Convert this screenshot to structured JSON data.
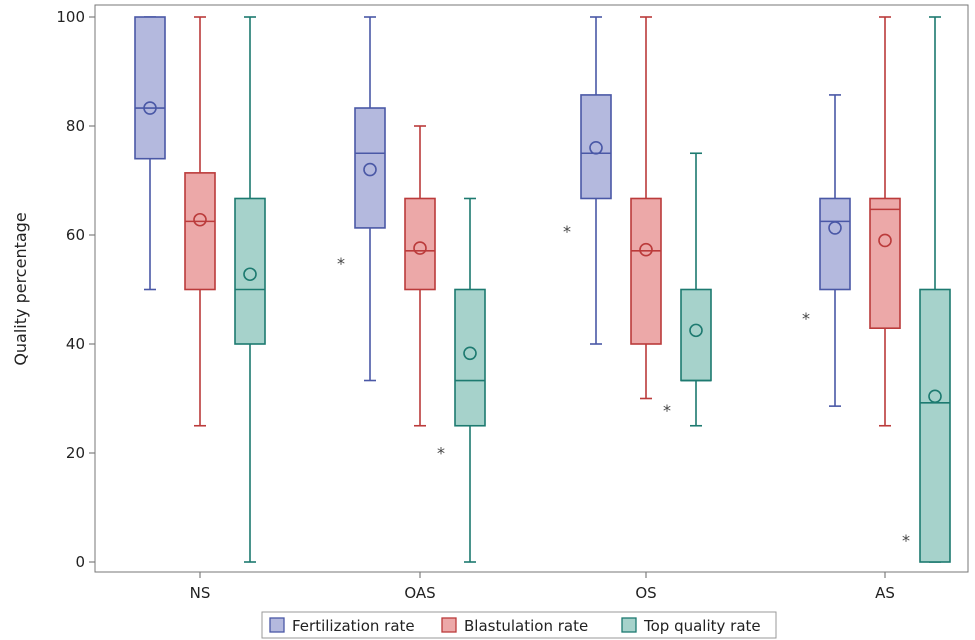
{
  "chart_data": {
    "type": "boxplot",
    "ylabel": "Quality percentage",
    "xlabel": "",
    "ylim": [
      0,
      100
    ],
    "yticks": [
      0,
      20,
      40,
      60,
      80,
      100
    ],
    "categories": [
      "NS",
      "OAS",
      "OS",
      "AS"
    ],
    "legend_position": "bottom",
    "series": [
      {
        "name": "Fertilization rate",
        "fill": "#b4b9de",
        "stroke": "#4a58a6",
        "boxes": [
          {
            "min": 50,
            "q1": 74,
            "median": 83.3,
            "q3": 100,
            "max": 100,
            "mean": 83.3,
            "outliers": []
          },
          {
            "min": 33.3,
            "q1": 61.3,
            "median": 75,
            "q3": 83.3,
            "max": 100,
            "mean": 72,
            "outliers": [
              55.6
            ]
          },
          {
            "min": 40,
            "q1": 66.7,
            "median": 75,
            "q3": 85.7,
            "max": 100,
            "mean": 76,
            "outliers": [
              61.5
            ]
          },
          {
            "min": 28.6,
            "q1": 50,
            "median": 62.5,
            "q3": 66.7,
            "max": 85.7,
            "mean": 61.3,
            "outliers": [
              45.5
            ]
          }
        ]
      },
      {
        "name": "Blastulation rate",
        "fill": "#eca8a8",
        "stroke": "#bb3b3b",
        "boxes": [
          {
            "min": 25,
            "q1": 50,
            "median": 62.5,
            "q3": 71.4,
            "max": 100,
            "mean": 62.8,
            "outliers": []
          },
          {
            "min": 25,
            "q1": 50,
            "median": 57.1,
            "q3": 66.7,
            "max": 80,
            "mean": 57.6,
            "outliers": []
          },
          {
            "min": 30,
            "q1": 40,
            "median": 57.1,
            "q3": 66.7,
            "max": 100,
            "mean": 57.3,
            "outliers": []
          },
          {
            "min": 25,
            "q1": 42.9,
            "median": 64.7,
            "q3": 66.7,
            "max": 100,
            "mean": 59,
            "outliers": []
          }
        ]
      },
      {
        "name": "Top quality rate",
        "fill": "#a6d2cb",
        "stroke": "#1d7a70",
        "boxes": [
          {
            "min": 0,
            "q1": 40,
            "median": 50,
            "q3": 66.7,
            "max": 100,
            "mean": 52.8,
            "outliers": []
          },
          {
            "min": 0,
            "q1": 25,
            "median": 33.3,
            "q3": 50,
            "max": 66.7,
            "mean": 38.3,
            "outliers": [
              20.8
            ]
          },
          {
            "min": 25,
            "q1": 33.3,
            "median": 33.3,
            "q3": 50,
            "max": 75,
            "mean": 42.5,
            "outliers": [
              28.6
            ]
          },
          {
            "min": 0,
            "q1": 0,
            "median": 29.2,
            "q3": 50,
            "max": 100,
            "mean": 30.4,
            "outliers": [
              4.8
            ]
          }
        ]
      }
    ]
  }
}
